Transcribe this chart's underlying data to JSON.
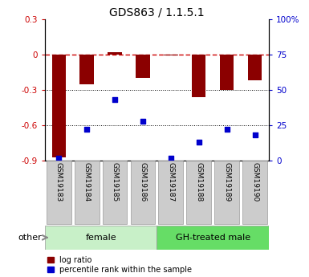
{
  "title": "GDS863 / 1.1.5.1",
  "samples": [
    "GSM19183",
    "GSM19184",
    "GSM19185",
    "GSM19186",
    "GSM19187",
    "GSM19188",
    "GSM19189",
    "GSM19190"
  ],
  "log_ratio": [
    -0.87,
    -0.25,
    0.02,
    -0.2,
    -0.005,
    -0.36,
    -0.3,
    -0.22
  ],
  "percentile_rank": [
    2,
    22,
    43,
    28,
    2,
    13,
    22,
    18
  ],
  "ylim_left": [
    -0.9,
    0.3
  ],
  "ylim_right": [
    0,
    100
  ],
  "yticks_left": [
    -0.9,
    -0.6,
    -0.3,
    0,
    0.3
  ],
  "yticks_right": [
    0,
    25,
    50,
    75,
    100
  ],
  "ytick_labels_left": [
    "-0.9",
    "-0.6",
    "-0.3",
    "0",
    "0.3"
  ],
  "ytick_labels_right": [
    "0",
    "25",
    "50",
    "75",
    "100%"
  ],
  "bar_color": "#8B0000",
  "dot_color": "#0000CC",
  "zero_line_color": "#cc0000",
  "dot_grid_color": "#000000",
  "legend_log_ratio": "log ratio",
  "legend_percentile": "percentile rank within the sample",
  "other_label": "other",
  "female_color": "#c8f0c8",
  "gh_male_color": "#66dd66",
  "sample_box_color": "#cccccc",
  "sample_box_edge": "#999999",
  "female_range": [
    0,
    3
  ],
  "gh_male_range": [
    4,
    7
  ],
  "female_label": "female",
  "gh_male_label": "GH-treated male"
}
